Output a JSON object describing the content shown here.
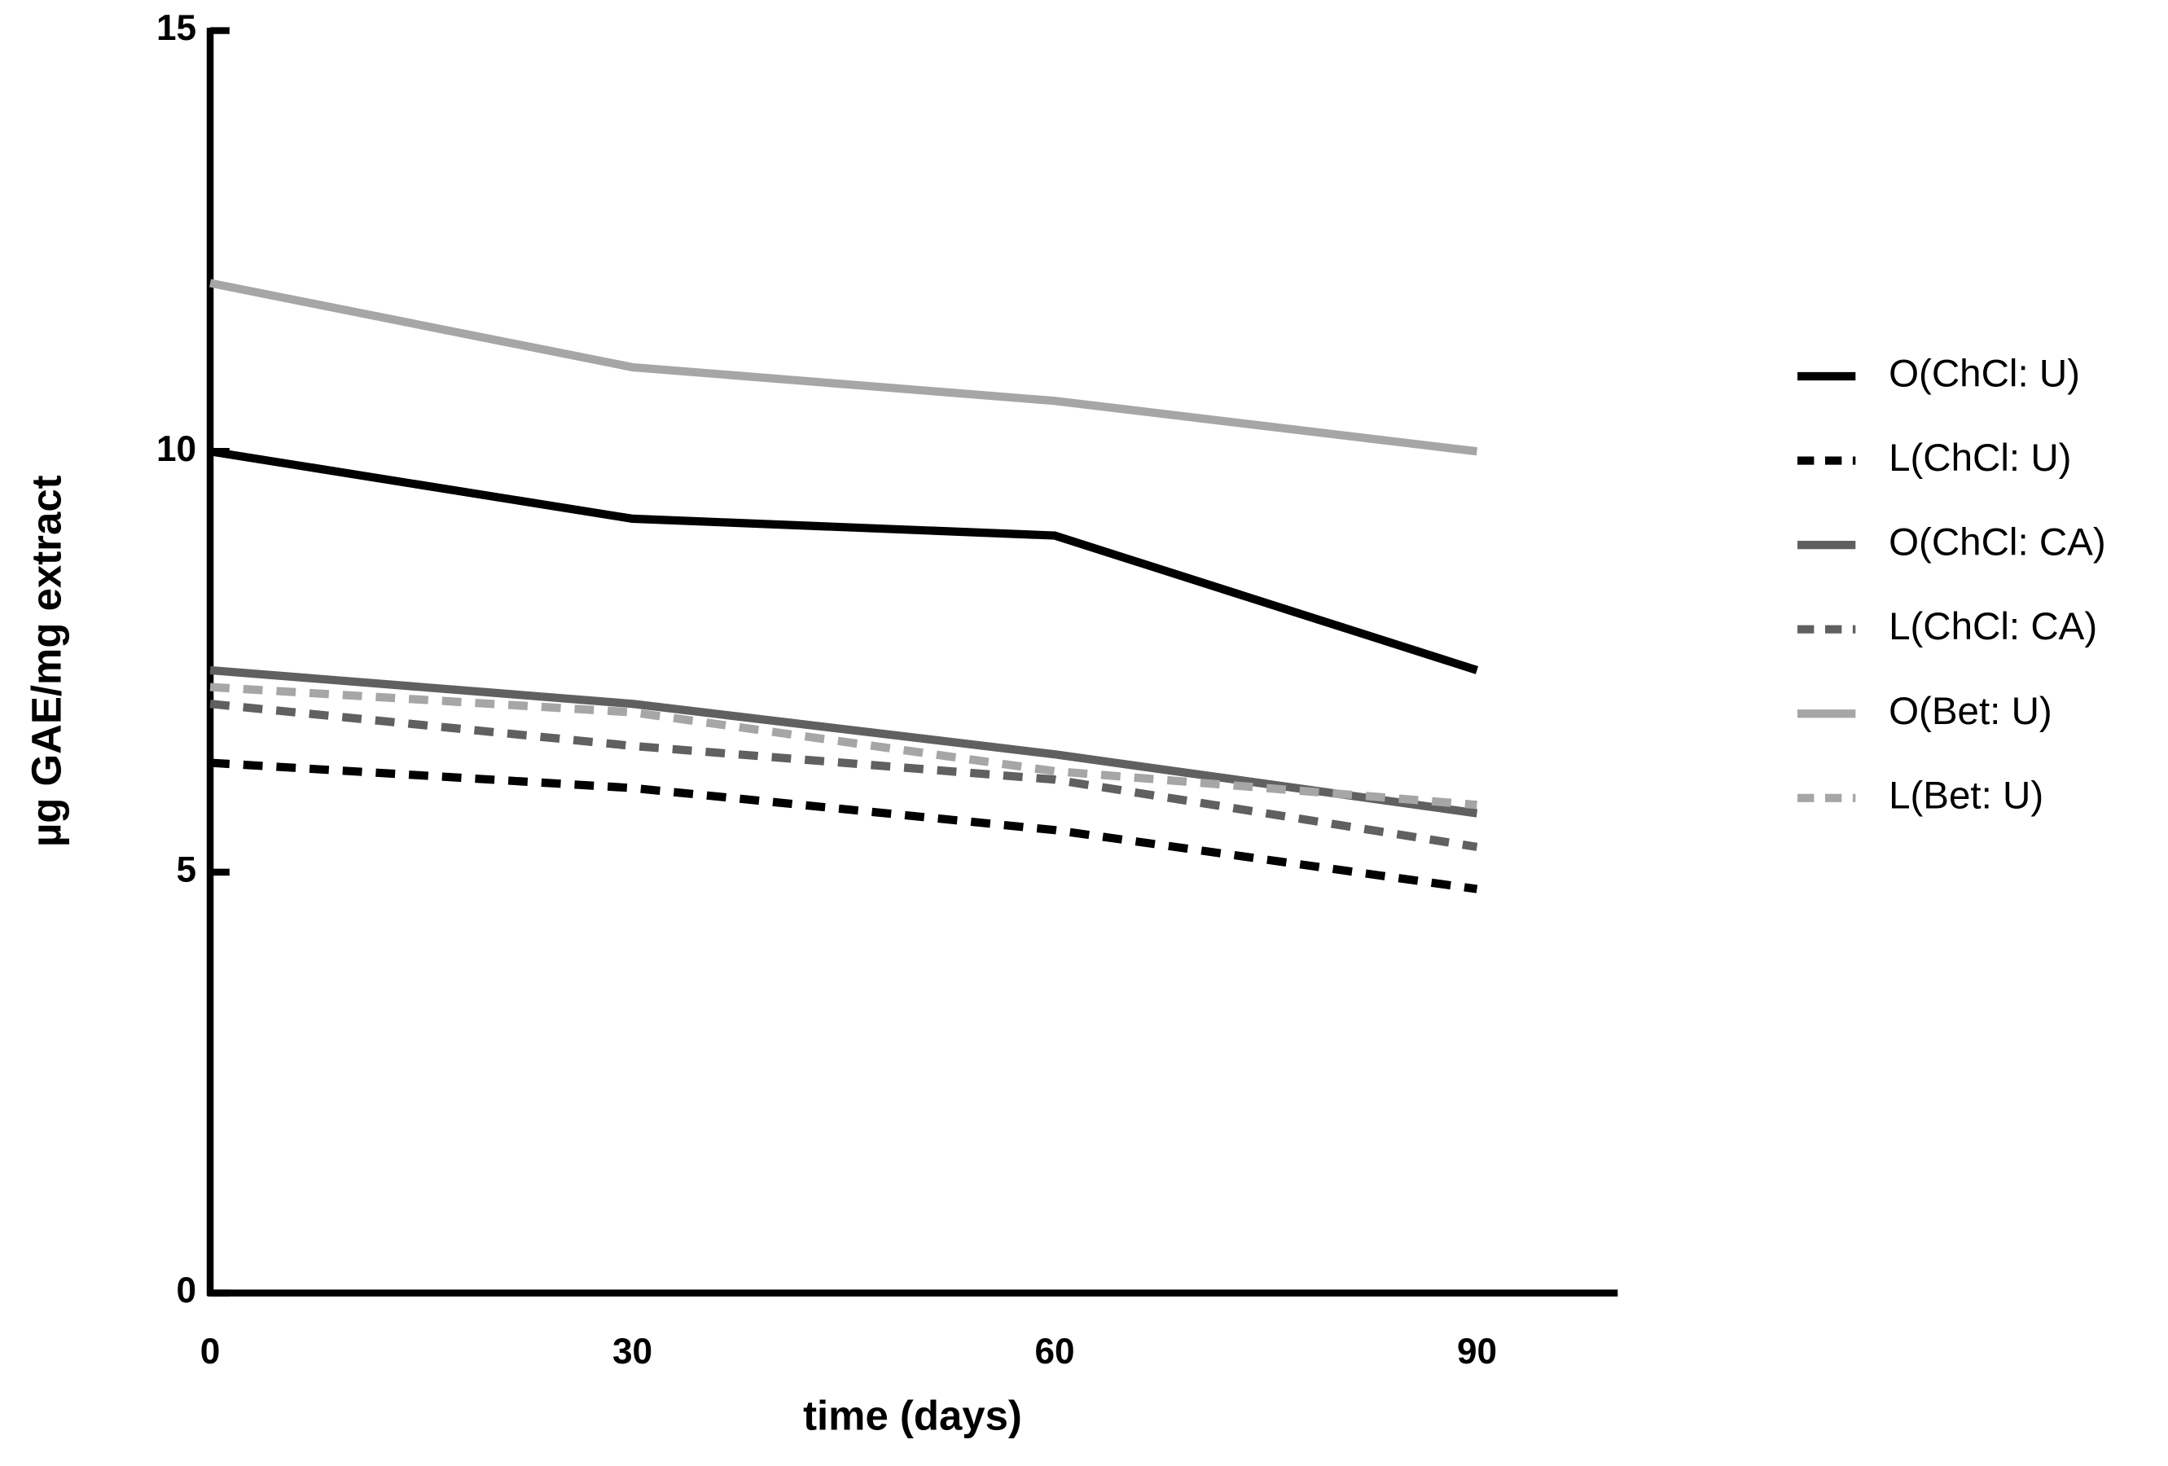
{
  "chart_data": {
    "type": "line",
    "x_label": "time (days)",
    "y_label": "µg GAE/mg extract",
    "x": [
      0,
      30,
      60,
      90
    ],
    "xlim": [
      0,
      100
    ],
    "xticks": [
      0,
      30,
      60,
      90
    ],
    "ylim": [
      0,
      15
    ],
    "yticks": [
      0,
      5,
      10,
      15
    ],
    "legend": "right",
    "series": [
      {
        "name": "O(ChCl: U)",
        "color": "#000000",
        "dashed": false,
        "values": [
          10.0,
          9.2,
          9.0,
          7.4
        ]
      },
      {
        "name": "L(ChCl: U)",
        "color": "#000000",
        "dashed": true,
        "values": [
          6.3,
          6.0,
          5.5,
          4.8
        ]
      },
      {
        "name": "O(ChCl: CA)",
        "color": "#606060",
        "dashed": false,
        "values": [
          7.4,
          7.0,
          6.4,
          5.7
        ]
      },
      {
        "name": "L(ChCl: CA)",
        "color": "#606060",
        "dashed": true,
        "values": [
          7.0,
          6.5,
          6.1,
          5.3
        ]
      },
      {
        "name": "O(Bet: U)",
        "color": "#a6a6a6",
        "dashed": false,
        "values": [
          12.0,
          11.0,
          10.6,
          10.0
        ]
      },
      {
        "name": "L(Bet: U)",
        "color": "#a6a6a6",
        "dashed": true,
        "values": [
          7.2,
          6.9,
          6.2,
          5.8
        ]
      }
    ]
  }
}
